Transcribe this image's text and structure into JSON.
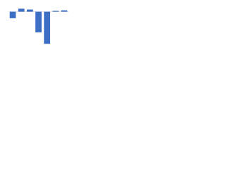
{
  "chart_data": {
    "type": "bar",
    "categories": [
      null,
      null,
      null,
      null,
      null,
      null,
      null
    ],
    "values": [
      -2.4,
      1.1,
      0.8,
      -7.6,
      -11.8,
      0.3,
      0.5
    ],
    "color": "#3d6fc4",
    "ylim": [
      -12,
      3
    ]
  }
}
